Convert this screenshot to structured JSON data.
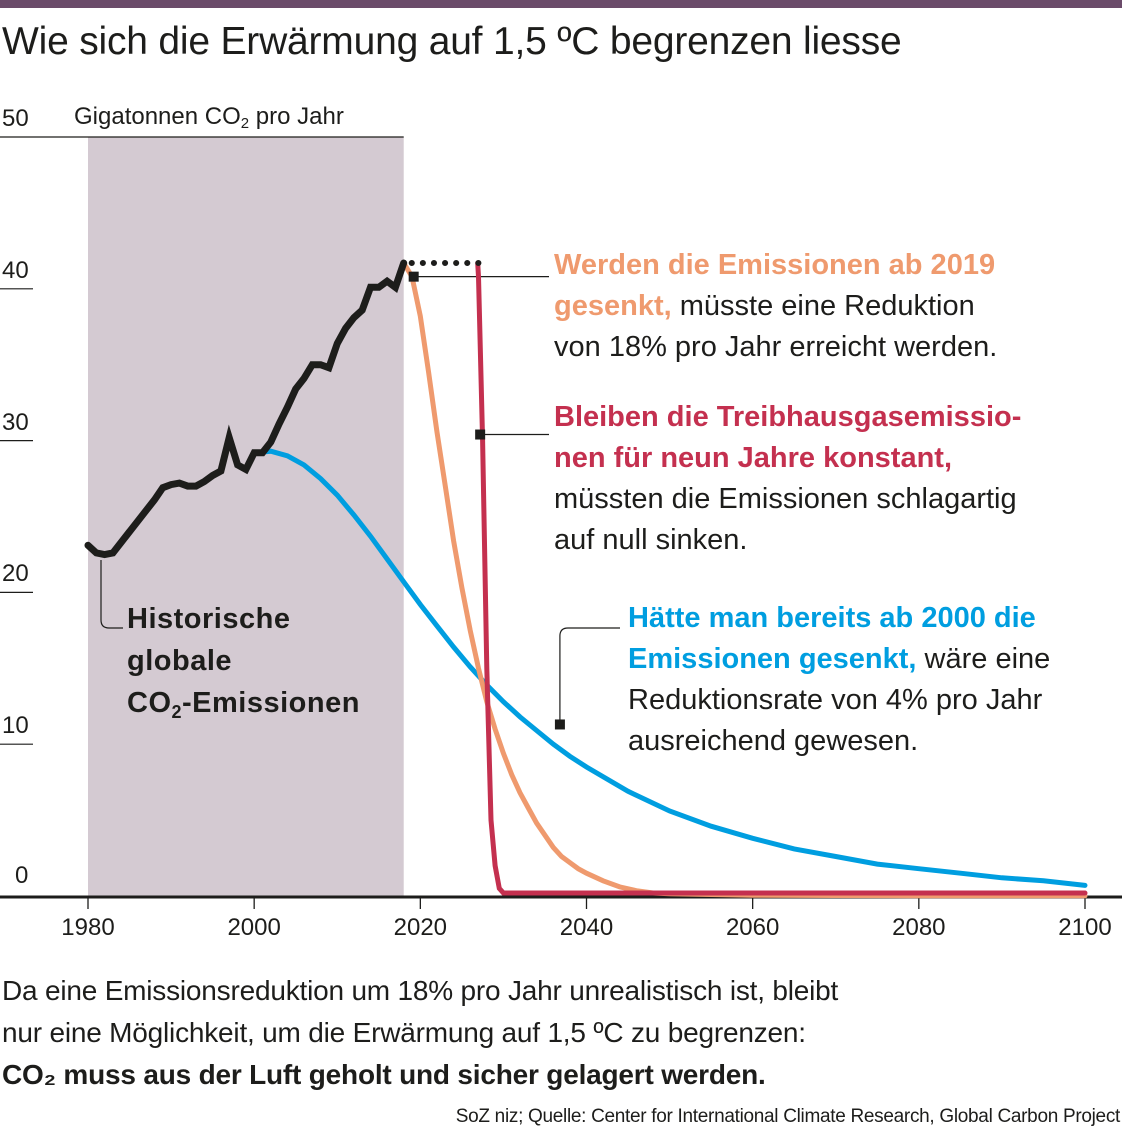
{
  "title": "Wie sich die Erwärmung auf 1,5 ºC begrenzen liesse",
  "colors": {
    "topbar": "#6b4b6a",
    "history_band": "#d4cad2",
    "historical": "#1d1d1b",
    "scenario_2019": "#ef9a6e",
    "scenario_constant": "#c4304f",
    "scenario_2000": "#009ee0",
    "text": "#1d1d1b"
  },
  "chart_data": {
    "type": "line",
    "title": "Wie sich die Erwärmung auf 1,5 ºC begrenzen liesse",
    "ylabel": "Gigatonnen CO2 pro Jahr",
    "ylabel_main": "Gigatonnen CO",
    "ylabel_sub": "2",
    "ylabel_tail": " pro Jahr",
    "xlabel": "",
    "xlim": [
      1970,
      2104
    ],
    "ylim": [
      0,
      50
    ],
    "yticks": [
      0,
      10,
      20,
      30,
      40,
      50
    ],
    "ytick_labels": [
      "0",
      "10",
      "20",
      "30",
      "40",
      "50"
    ],
    "xticks": [
      1980,
      2000,
      2020,
      2040,
      2060,
      2080,
      2100
    ],
    "xtick_labels": [
      "1980",
      "2000",
      "2020",
      "2040",
      "2060",
      "2080",
      "2100"
    ],
    "grid": false,
    "shaded_region": {
      "label": "Historische globale CO2-Emissionen",
      "x": [
        1980,
        2018
      ]
    },
    "series": [
      {
        "name": "Historische globale CO2-Emissionen",
        "key": "historical",
        "x": [
          1980,
          1981,
          1982,
          1983,
          1984,
          1985,
          1986,
          1987,
          1988,
          1989,
          1990,
          1991,
          1992,
          1993,
          1994,
          1995,
          1996,
          1997,
          1998,
          1999,
          2000,
          2001,
          2002,
          2003,
          2004,
          2005,
          2006,
          2007,
          2008,
          2009,
          2010,
          2011,
          2012,
          2013,
          2014,
          2015,
          2016,
          2017,
          2018
        ],
        "values": [
          23.1,
          22.6,
          22.5,
          22.6,
          23.3,
          24.0,
          24.7,
          25.4,
          26.1,
          26.9,
          27.1,
          27.2,
          27.0,
          27.0,
          27.3,
          27.7,
          28.0,
          30.2,
          28.4,
          28.1,
          29.2,
          29.2,
          29.9,
          31.1,
          32.2,
          33.4,
          34.1,
          35.0,
          35.0,
          34.8,
          36.4,
          37.4,
          38.1,
          38.6,
          40.1,
          40.1,
          40.5,
          40.1,
          41.7
        ]
      },
      {
        "name": "Werden die Emissionen ab 2019 gesenkt",
        "key": "scenario_2019",
        "x": [
          2018,
          2019,
          2020,
          2021,
          2022,
          2023,
          2024,
          2025,
          2026,
          2027,
          2028,
          2029,
          2030,
          2031,
          2032,
          2033,
          2034,
          2035,
          2036,
          2037,
          2038,
          2039,
          2040,
          2042,
          2044,
          2046,
          2048,
          2050,
          2055,
          2060,
          2070,
          2080,
          2090,
          2100
        ],
        "values": [
          41.7,
          40.8,
          38.2,
          34.5,
          30.6,
          27.0,
          23.4,
          20.3,
          17.5,
          15.0,
          12.8,
          11.0,
          9.4,
          8.0,
          6.8,
          5.8,
          4.8,
          4.0,
          3.2,
          2.6,
          2.2,
          1.8,
          1.5,
          1.0,
          0.6,
          0.35,
          0.2,
          0.15,
          0.1,
          0.05,
          0.03,
          0.02,
          0.01,
          0.01
        ]
      },
      {
        "name": "Bleiben die Treibhausgasemissionen für neun Jahre konstant",
        "key": "scenario_constant",
        "x": [
          2026.9,
          2027,
          2027.5,
          2028,
          2028.5,
          2029,
          2029.5,
          2030,
          2040,
          2060,
          2080,
          2100
        ],
        "values": [
          41.7,
          40.8,
          30.0,
          15.0,
          5.0,
          2.0,
          0.5,
          0.2,
          0.2,
          0.2,
          0.2,
          0.2
        ],
        "plateau": {
          "x": [
            2018,
            2027
          ],
          "value": 41.7,
          "style": "dotted"
        }
      },
      {
        "name": "Hätte man bereits ab 2000 die Emissionen gesenkt",
        "key": "scenario_2000",
        "x": [
          2000,
          2002,
          2004,
          2006,
          2008,
          2010,
          2012,
          2014,
          2016,
          2018,
          2020,
          2022,
          2024,
          2026,
          2028,
          2030,
          2032,
          2034,
          2036,
          2038,
          2040,
          2045,
          2050,
          2055,
          2060,
          2065,
          2070,
          2075,
          2080,
          2085,
          2090,
          2095,
          2100
        ],
        "values": [
          29.2,
          29.3,
          29.0,
          28.4,
          27.5,
          26.4,
          25.1,
          23.7,
          22.2,
          20.7,
          19.2,
          17.8,
          16.4,
          15.1,
          13.9,
          12.8,
          11.8,
          10.9,
          10.0,
          9.2,
          8.5,
          6.9,
          5.6,
          4.6,
          3.8,
          3.1,
          2.6,
          2.1,
          1.8,
          1.5,
          1.2,
          1.0,
          0.7
        ]
      }
    ],
    "markers": [
      {
        "series": "scenario_2019",
        "x": 2019.2,
        "y": 40.8
      },
      {
        "series": "scenario_constant",
        "x": 2027.2,
        "y": 30.4
      },
      {
        "series": "scenario_2000",
        "x": 2036.8,
        "y": 11.3
      }
    ]
  },
  "annotations": {
    "scenario_2019": {
      "bold": "Werden die Emissionen ab 2019",
      "bold2": "gesenkt,",
      "rest1": " müsste eine Reduktion",
      "rest2": "von 18% pro Jahr erreicht werden."
    },
    "scenario_constant": {
      "bold1": "Bleiben die Treibhausgasemissio-",
      "bold2": "nen für neun Jahre konstant,",
      "rest1": "müssten die Emissionen schlagartig",
      "rest2": "auf null sinken."
    },
    "scenario_2000": {
      "bold1": "Hätte man bereits ab 2000 die",
      "bold2": "Emissionen gesenkt,",
      "rest1": " wäre eine",
      "rest2": "Reduktionsrate von 4% pro Jahr",
      "rest3": "ausreichend gewesen."
    },
    "historical": {
      "line1": "Historische",
      "line2": "globale",
      "line3_main": "CO",
      "line3_sub": "2",
      "line3_tail": "-Emissionen"
    }
  },
  "note": {
    "line1": "Da eine Emissionsreduktion um 18% pro Jahr unrealistisch ist, bleibt",
    "line2": "nur eine Möglichkeit, um die Erwärmung auf 1,5 ºC zu begrenzen:",
    "bold": "CO₂ muss aus der Luft geholt und sicher gelagert werden."
  },
  "source": "SoZ niz; Quelle: Center for International Climate Research, Global Carbon Project"
}
